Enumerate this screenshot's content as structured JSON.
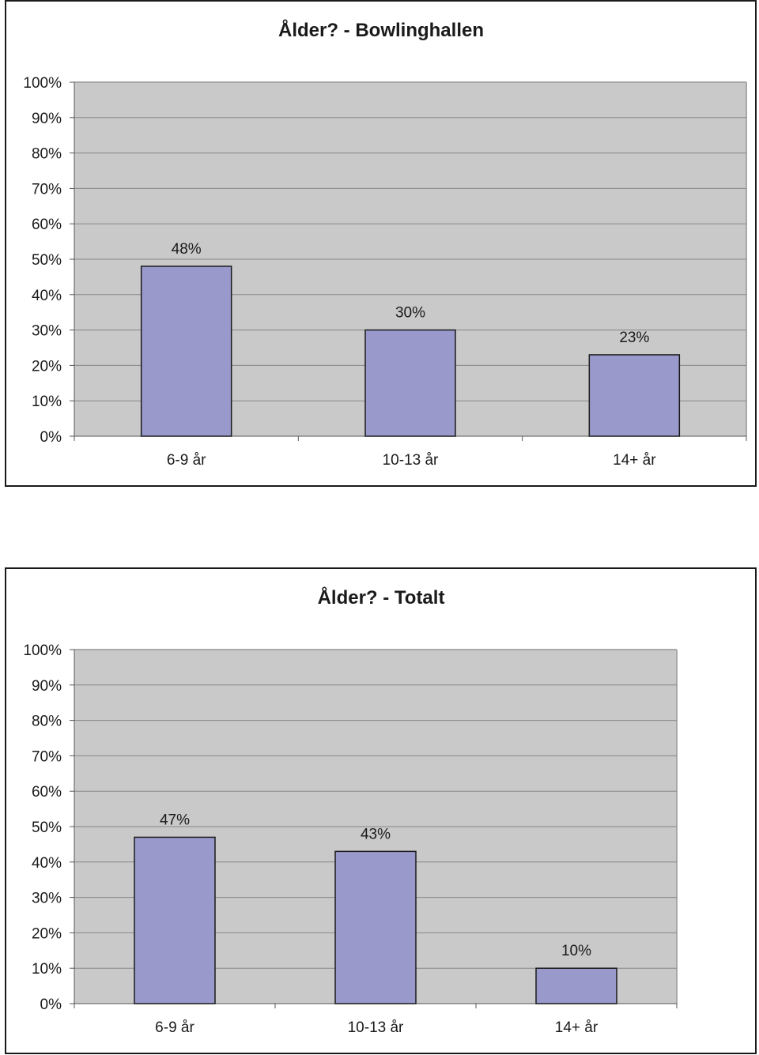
{
  "chart_data": [
    {
      "type": "bar",
      "title": "Ålder? - Bowlinghallen",
      "categories": [
        "6-9 år",
        "10-13 år",
        "14+ år"
      ],
      "values": [
        48,
        30,
        23
      ],
      "data_labels": [
        "48%",
        "30%",
        "23%"
      ],
      "y_ticks": [
        "0%",
        "10%",
        "20%",
        "30%",
        "40%",
        "50%",
        "60%",
        "70%",
        "80%",
        "90%",
        "100%"
      ],
      "ylim": [
        0,
        100
      ],
      "xlabel": "",
      "ylabel": "",
      "grid": true,
      "legend": "none",
      "colors": {
        "bar": "#9999cc",
        "plot_bg": "#c9c9c9",
        "grid": "#888888"
      }
    },
    {
      "type": "bar",
      "title": "Ålder? - Totalt",
      "categories": [
        "6-9 år",
        "10-13 år",
        "14+ år"
      ],
      "values": [
        47,
        43,
        10
      ],
      "data_labels": [
        "47%",
        "43%",
        "10%"
      ],
      "y_ticks": [
        "0%",
        "10%",
        "20%",
        "30%",
        "40%",
        "50%",
        "60%",
        "70%",
        "80%",
        "90%",
        "100%"
      ],
      "ylim": [
        0,
        100
      ],
      "xlabel": "",
      "ylabel": "",
      "grid": true,
      "legend": "none",
      "colors": {
        "bar": "#9999cc",
        "plot_bg": "#c9c9c9",
        "grid": "#888888"
      }
    }
  ]
}
